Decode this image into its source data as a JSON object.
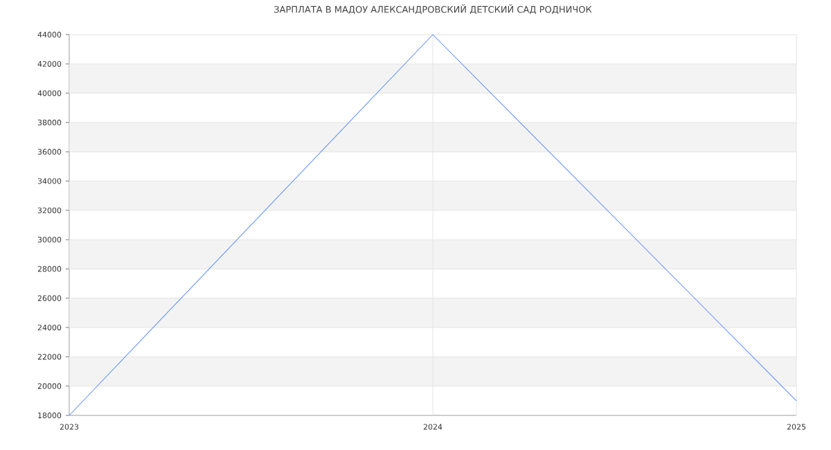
{
  "chart_data": {
    "type": "line",
    "title": "ЗАРПЛАТА В МАДОУ АЛЕКСАНДРОВСКИЙ ДЕТСКИЙ САД РОДНИЧОК",
    "x": [
      2023,
      2024,
      2025
    ],
    "series": [
      {
        "color": "#5b8ff9",
        "values": [
          18000,
          44000,
          19000
        ]
      }
    ],
    "xlim": [
      2023,
      2025
    ],
    "xticks": [
      2023,
      2024,
      2025
    ],
    "ylim": [
      18000,
      44000
    ],
    "yticks": [
      18000,
      20000,
      22000,
      24000,
      26000,
      28000,
      30000,
      32000,
      34000,
      36000,
      38000,
      40000,
      42000,
      44000
    ],
    "grid": true,
    "marker": "none",
    "line_style": "solid"
  }
}
